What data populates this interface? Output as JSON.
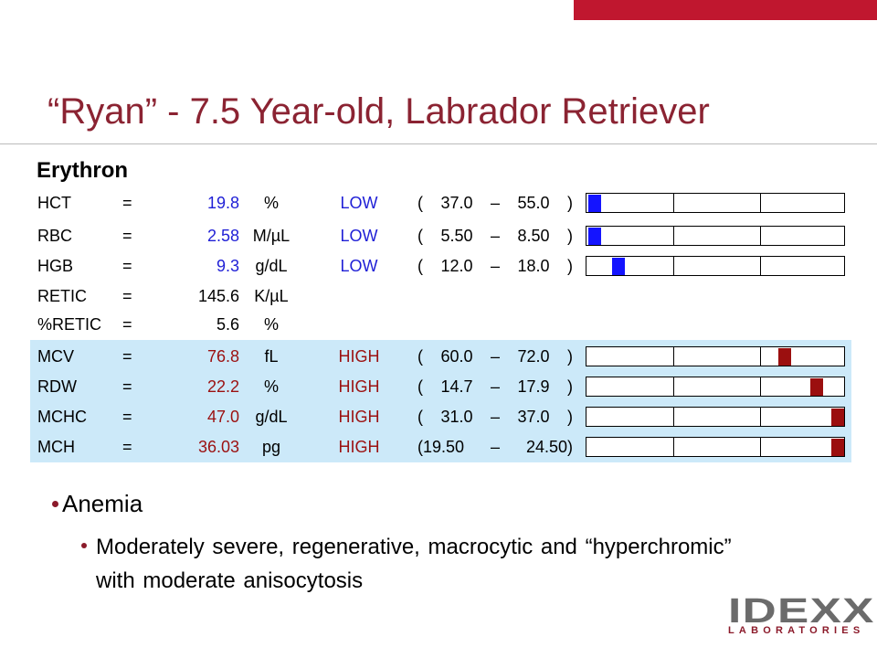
{
  "header": {
    "title": "“Ryan” - 7.5 Year-old, Labrador Retriever"
  },
  "section": "Erythron",
  "table": {
    "rows": [
      {
        "name": "HCT",
        "eq": "=",
        "value": "19.8",
        "unit": "%",
        "flag": "LOW",
        "range": "( 37.0 – 55.0 )"
      },
      {
        "name": "RBC",
        "eq": "=",
        "value": "2.58",
        "unit": "M/µL",
        "flag": "LOW",
        "range": "( 5.50 – 8.50 )"
      },
      {
        "name": "HGB",
        "eq": "=",
        "value": "9.3",
        "unit": "g/dL",
        "flag": "LOW",
        "range": "( 12.0 – 18.0 )"
      },
      {
        "name": "RETIC",
        "eq": "=",
        "value": "145.6",
        "unit": "K/µL"
      },
      {
        "name": "%RETIC",
        "eq": "=",
        "value": "5.6",
        "unit": "%"
      },
      {
        "name": "MCV",
        "eq": "=",
        "value": "76.8",
        "unit": "fL",
        "flag": "HIGH",
        "range": "( 60.0 – 72.0 )"
      },
      {
        "name": "RDW",
        "eq": "=",
        "value": "22.2",
        "unit": "%",
        "flag": "HIGH",
        "range": "( 14.7 – 17.9 )"
      },
      {
        "name": "MCHC",
        "eq": "=",
        "value": "47.0",
        "unit": "g/dL",
        "flag": "HIGH",
        "range": "( 31.0 – 37.0 )"
      },
      {
        "name": "MCH",
        "eq": "=",
        "value": "36.03",
        "unit": "pg",
        "flag": "HIGH",
        "range": "(19.50 – 24.50)"
      }
    ]
  },
  "bullets": [
    {
      "text": "Anemia",
      "sub": [
        "Moderately severe, regenerative, macrocytic and “hyperchromic” with moderate anisocytosis"
      ]
    }
  ],
  "logo": {
    "name": "IDEXX",
    "sub": "LABORATORIES"
  }
}
